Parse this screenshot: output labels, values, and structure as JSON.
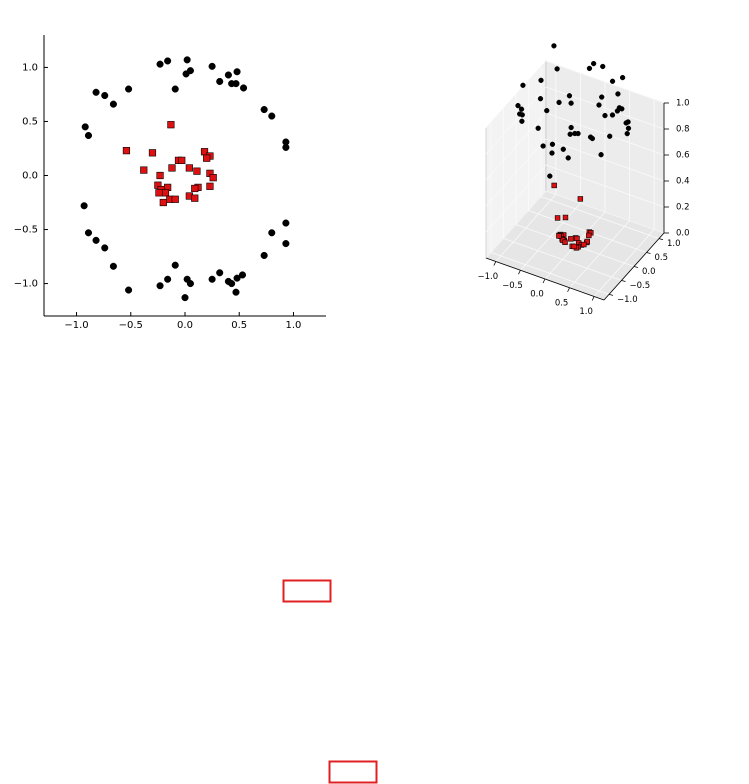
{
  "chart_data": [
    {
      "type": "scatter",
      "xlim": [
        -1.3,
        1.3
      ],
      "ylim": [
        -1.3,
        1.3
      ],
      "xticks": [
        {
          "value": -1,
          "label": "−1.0"
        },
        {
          "value": -0.5,
          "label": "−0.5"
        },
        {
          "value": 0,
          "label": "0.0"
        },
        {
          "value": 0.5,
          "label": "0.5"
        },
        {
          "value": 1,
          "label": "1.0"
        }
      ],
      "yticks": [
        {
          "value": -1,
          "label": "−1.0"
        },
        {
          "value": -0.5,
          "label": "−0.5"
        },
        {
          "value": 0,
          "label": "0.0"
        },
        {
          "value": 0.5,
          "label": "0.5"
        },
        {
          "value": 1,
          "label": "1.0"
        }
      ],
      "series": [
        {
          "color": "#000000",
          "marker": "circle",
          "x": [
            -0.23,
            -0.16,
            0.02,
            0.01,
            0.05,
            -0.09,
            0.25,
            0.32,
            0.4,
            0.48,
            0.43,
            0.47,
            0.54,
            0.73,
            0.8,
            0.93,
            0.93,
            -0.52,
            -0.82,
            -0.74,
            -0.66,
            -0.92,
            -0.89,
            -0.93,
            -0.89,
            -0.82,
            -0.74,
            -0.66,
            -0.52,
            -0.23,
            -0.16,
            -0.09,
            0.0,
            0.02,
            0.05,
            0.25,
            0.32,
            0.4,
            0.43,
            0.48,
            0.47,
            0.53,
            0.73,
            0.8,
            0.93,
            0.93
          ],
          "y": [
            1.03,
            1.06,
            1.07,
            0.94,
            0.97,
            0.8,
            1.01,
            0.87,
            0.93,
            0.96,
            0.85,
            0.85,
            0.81,
            0.61,
            0.55,
            0.31,
            0.26,
            0.8,
            0.77,
            0.74,
            0.66,
            0.45,
            0.37,
            -0.28,
            -0.53,
            -0.6,
            -0.67,
            -0.84,
            -1.06,
            -1.02,
            -0.96,
            -0.83,
            -1.13,
            -0.96,
            -1.0,
            -0.96,
            -0.9,
            -0.98,
            -1.0,
            -0.95,
            -1.08,
            -0.92,
            -0.74,
            -0.53,
            -0.44,
            -0.63
          ]
        },
        {
          "color": "#dd1111",
          "marker": "square",
          "x": [
            -0.13,
            -0.54,
            -0.3,
            -0.06,
            -0.03,
            0.18,
            0.23,
            0.2,
            -0.38,
            -0.12,
            0.04,
            0.11,
            0.23,
            -0.23,
            0.26,
            -0.25,
            -0.16,
            0.12,
            0.09,
            0.23,
            -0.22,
            -0.18,
            -0.24,
            -0.14,
            -0.09,
            0.04,
            0.09,
            -0.2
          ],
          "y": [
            0.47,
            0.23,
            0.21,
            0.14,
            0.14,
            0.22,
            0.18,
            0.16,
            0.05,
            0.07,
            0.07,
            0.04,
            0.02,
            0.0,
            -0.02,
            -0.09,
            -0.11,
            -0.11,
            -0.12,
            -0.1,
            -0.13,
            -0.16,
            -0.16,
            -0.22,
            -0.22,
            -0.19,
            -0.21,
            -0.25
          ]
        }
      ]
    },
    {
      "type": "scatter3d",
      "xlim": [
        -1.2,
        1.2
      ],
      "ylim": [
        -1.2,
        1.2
      ],
      "zlim": [
        0,
        1
      ],
      "xticks": [
        {
          "value": -1,
          "label": "−1.0"
        },
        {
          "value": -0.5,
          "label": "−0.5"
        },
        {
          "value": 0,
          "label": "0.0"
        },
        {
          "value": 0.5,
          "label": "0.5"
        },
        {
          "value": 1,
          "label": "1.0"
        }
      ],
      "yticks": [
        {
          "value": -1,
          "label": "−1.0"
        },
        {
          "value": -0.5,
          "label": "−0.5"
        },
        {
          "value": 0,
          "label": "0.0"
        },
        {
          "value": 0.5,
          "label": "0.5"
        },
        {
          "value": 1,
          "label": "1.0"
        }
      ],
      "zticks": [
        {
          "value": 0,
          "label": "0.0"
        },
        {
          "value": 0.2,
          "label": "0.2"
        },
        {
          "value": 0.4,
          "label": "0.4"
        },
        {
          "value": 0.6,
          "label": "0.6"
        },
        {
          "value": 0.8,
          "label": "0.8"
        },
        {
          "value": 1,
          "label": "1.0"
        }
      ],
      "series": [
        {
          "color": "#dd1111",
          "marker": "square",
          "x": [
            -0.13,
            -0.54,
            -0.3,
            -0.06,
            -0.03,
            0.18,
            0.23,
            0.2,
            -0.38,
            -0.12,
            0.04,
            0.11,
            0.23,
            -0.23,
            0.26,
            -0.25,
            -0.16,
            0.12,
            0.09,
            0.23,
            -0.22,
            -0.18,
            -0.24,
            -0.14,
            -0.09,
            0.04,
            0.09,
            -0.2
          ],
          "y": [
            0.47,
            0.23,
            0.21,
            0.14,
            0.14,
            0.22,
            0.18,
            0.16,
            0.05,
            0.07,
            0.07,
            0.04,
            0.02,
            0.0,
            -0.02,
            -0.09,
            -0.11,
            -0.11,
            -0.12,
            -0.1,
            -0.13,
            -0.16,
            -0.16,
            -0.22,
            -0.22,
            -0.19,
            -0.21,
            -0.25
          ],
          "z": [
            0.24,
            0.34,
            0.13,
            0.02,
            0.02,
            0.08,
            0.09,
            0.07,
            0.15,
            0.02,
            0.01,
            0.01,
            0.05,
            0.05,
            0.07,
            0.07,
            0.04,
            0.03,
            0.02,
            0.06,
            0.07,
            0.06,
            0.08,
            0.07,
            0.06,
            0.04,
            0.05,
            0.1
          ]
        },
        {
          "color": "#000000",
          "marker": "circle",
          "x": [
            -0.23,
            -0.16,
            0.02,
            0.01,
            0.05,
            -0.09,
            0.25,
            0.32,
            0.4,
            0.48,
            0.43,
            0.47,
            0.54,
            0.73,
            0.8,
            0.93,
            0.93,
            -0.52,
            -0.82,
            -0.74,
            -0.66,
            -0.92,
            -0.89,
            -0.93,
            -0.89,
            -0.82,
            -0.74,
            -0.66,
            -0.52,
            -0.23,
            -0.16,
            -0.09,
            0.0,
            0.02,
            0.05,
            0.25,
            0.32,
            0.4,
            0.43,
            0.48,
            0.47,
            0.53,
            0.73,
            0.8,
            0.93,
            0.93
          ],
          "y": [
            1.03,
            1.06,
            1.07,
            0.94,
            0.97,
            0.8,
            1.01,
            0.87,
            0.93,
            0.96,
            0.85,
            0.85,
            0.81,
            0.61,
            0.55,
            0.31,
            0.26,
            0.8,
            0.77,
            0.74,
            0.66,
            0.45,
            0.37,
            -0.28,
            -0.53,
            -0.6,
            -0.67,
            -0.84,
            -1.06,
            -1.02,
            -0.96,
            -0.83,
            -1.13,
            -0.96,
            -1.0,
            -0.96,
            -0.9,
            -0.98,
            -1.0,
            -0.95,
            -1.08,
            -0.92,
            -0.74,
            -0.53,
            -0.44,
            -0.63
          ],
          "z": [
            1.11,
            1.15,
            1.15,
            0.88,
            0.94,
            0.65,
            1.08,
            0.86,
            1.02,
            1.15,
            0.91,
            0.94,
            0.95,
            0.91,
            0.94,
            0.96,
            0.93,
            0.91,
            1.26,
            1.1,
            0.87,
            1.05,
            0.93,
            0.94,
            1.07,
            1.03,
            1.0,
            1.14,
            1.39,
            1.09,
            0.95,
            0.7,
            1.28,
            0.92,
            1.0,
            0.98,
            0.91,
            1.12,
            1.18,
            1.13,
            1.39,
            1.13,
            1.08,
            0.92,
            1.06,
            1.26
          ]
        }
      ]
    }
  ]
}
